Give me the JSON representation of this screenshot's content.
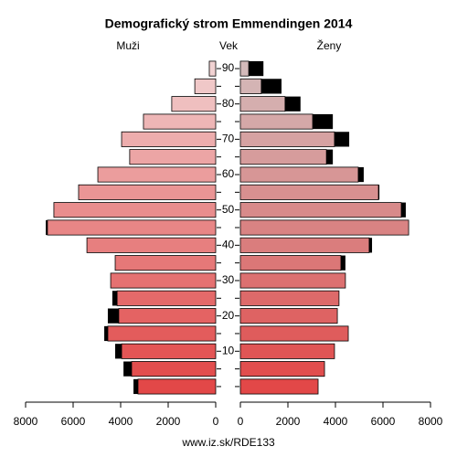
{
  "chart_data": {
    "type": "pyramid",
    "title": "Demografický strom Emmendingen 2014",
    "left_label": "Muži",
    "center_label": "Vek",
    "right_label": "Ženy",
    "footer": "www.iz.sk/RDE133",
    "ages": [
      0,
      5,
      10,
      15,
      20,
      25,
      30,
      35,
      40,
      45,
      50,
      55,
      60,
      65,
      70,
      75,
      80,
      85,
      90
    ],
    "male_values": [
      3270,
      3540,
      3960,
      4540,
      4080,
      4150,
      4420,
      4230,
      5420,
      7080,
      6810,
      5770,
      4960,
      3620,
      3960,
      3040,
      1850,
      880,
      270
    ],
    "male_extra_values": [
      190,
      340,
      270,
      150,
      460,
      200,
      0,
      0,
      0,
      70,
      0,
      0,
      0,
      0,
      0,
      0,
      0,
      0,
      0
    ],
    "female_values": [
      3270,
      3540,
      3960,
      4540,
      4080,
      4150,
      4420,
      4230,
      5420,
      7080,
      6770,
      5810,
      4960,
      3620,
      3960,
      3040,
      1880,
      880,
      350
    ],
    "female_extra_values": [
      0,
      0,
      0,
      0,
      0,
      0,
      0,
      190,
      120,
      0,
      190,
      40,
      230,
      270,
      620,
      850,
      650,
      850,
      620
    ],
    "male_colors": [
      "#e24848",
      "#e24e4e",
      "#e35555",
      "#e35c5c",
      "#e46363",
      "#e46a6a",
      "#e57171",
      "#e67878",
      "#e77f7f",
      "#e88686",
      "#e98d8d",
      "#ea9595",
      "#eb9d9d",
      "#eca5a5",
      "#edadad",
      "#eeb6b6",
      "#efbfbf",
      "#f0c8c8",
      "#f1d2d2"
    ],
    "female_colors": [
      "#e24848",
      "#e14e4e",
      "#e05555",
      "#df5c5c",
      "#de6363",
      "#dd6a6a",
      "#dc7070",
      "#db7777",
      "#da7d7d",
      "#d98383",
      "#d88a8a",
      "#d89090",
      "#d79696",
      "#d69c9c",
      "#d6a2a2",
      "#d5a8a8",
      "#d5aeae",
      "#d4b4b4",
      "#d4baba"
    ],
    "extra_color": "#000000",
    "xlim": [
      0,
      8000
    ],
    "xticks": [
      0,
      2000,
      4000,
      6000,
      8000
    ],
    "ylim": [
      -2.5,
      92.5
    ],
    "yticks": [
      10,
      20,
      30,
      40,
      50,
      60,
      70,
      80,
      90
    ]
  }
}
